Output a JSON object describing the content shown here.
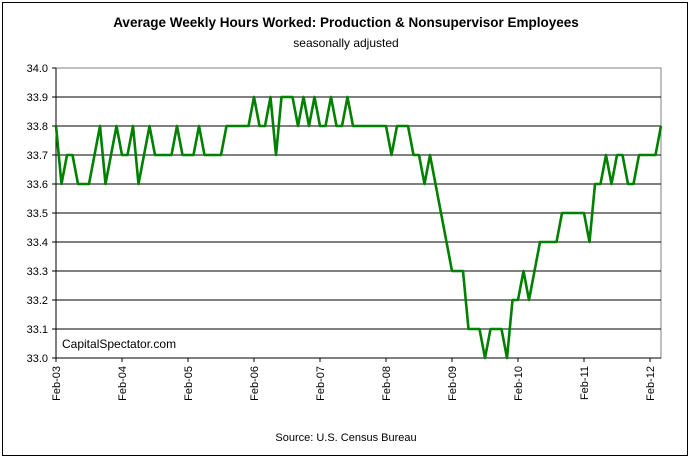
{
  "chart_data": {
    "type": "line",
    "title": "Average Weekly Hours Worked: Production & Nonsupervisor Employees",
    "subtitle": "seasonally adjusted",
    "source": "Source: U.S. Census Bureau",
    "watermark": "CapitalSpectator.com",
    "xlabel": "",
    "ylabel": "",
    "ylim": [
      33.0,
      34.0
    ],
    "y_ticks": [
      "33.0",
      "33.1",
      "33.2",
      "33.3",
      "33.4",
      "33.5",
      "33.6",
      "33.7",
      "33.8",
      "33.9",
      "34.0"
    ],
    "x_ticks": [
      "Feb-03",
      "Feb-04",
      "Feb-05",
      "Feb-06",
      "Feb-07",
      "Feb-08",
      "Feb-09",
      "Feb-10",
      "Feb-11",
      "Feb-12"
    ],
    "grid": true,
    "line_color": "#008000",
    "series": [
      {
        "start": "Feb-03",
        "frequency": "monthly",
        "values": [
          33.8,
          33.6,
          33.7,
          33.7,
          33.6,
          33.6,
          33.6,
          33.7,
          33.8,
          33.6,
          33.7,
          33.8,
          33.7,
          33.7,
          33.8,
          33.6,
          33.7,
          33.8,
          33.7,
          33.7,
          33.7,
          33.7,
          33.8,
          33.7,
          33.7,
          33.7,
          33.8,
          33.7,
          33.7,
          33.7,
          33.7,
          33.8,
          33.8,
          33.8,
          33.8,
          33.8,
          33.9,
          33.8,
          33.8,
          33.9,
          33.7,
          33.9,
          33.9,
          33.9,
          33.8,
          33.9,
          33.8,
          33.9,
          33.8,
          33.8,
          33.9,
          33.8,
          33.8,
          33.9,
          33.8,
          33.8,
          33.8,
          33.8,
          33.8,
          33.8,
          33.8,
          33.7,
          33.8,
          33.8,
          33.8,
          33.7,
          33.7,
          33.6,
          33.7,
          33.6,
          33.5,
          33.4,
          33.3,
          33.3,
          33.3,
          33.1,
          33.1,
          33.1,
          33.0,
          33.1,
          33.1,
          33.1,
          33.0,
          33.2,
          33.2,
          33.3,
          33.2,
          33.3,
          33.4,
          33.4,
          33.4,
          33.4,
          33.5,
          33.5,
          33.5,
          33.5,
          33.5,
          33.4,
          33.6,
          33.6,
          33.7,
          33.6,
          33.7,
          33.7,
          33.6,
          33.6,
          33.7,
          33.7,
          33.7,
          33.7,
          33.8
        ]
      }
    ]
  }
}
